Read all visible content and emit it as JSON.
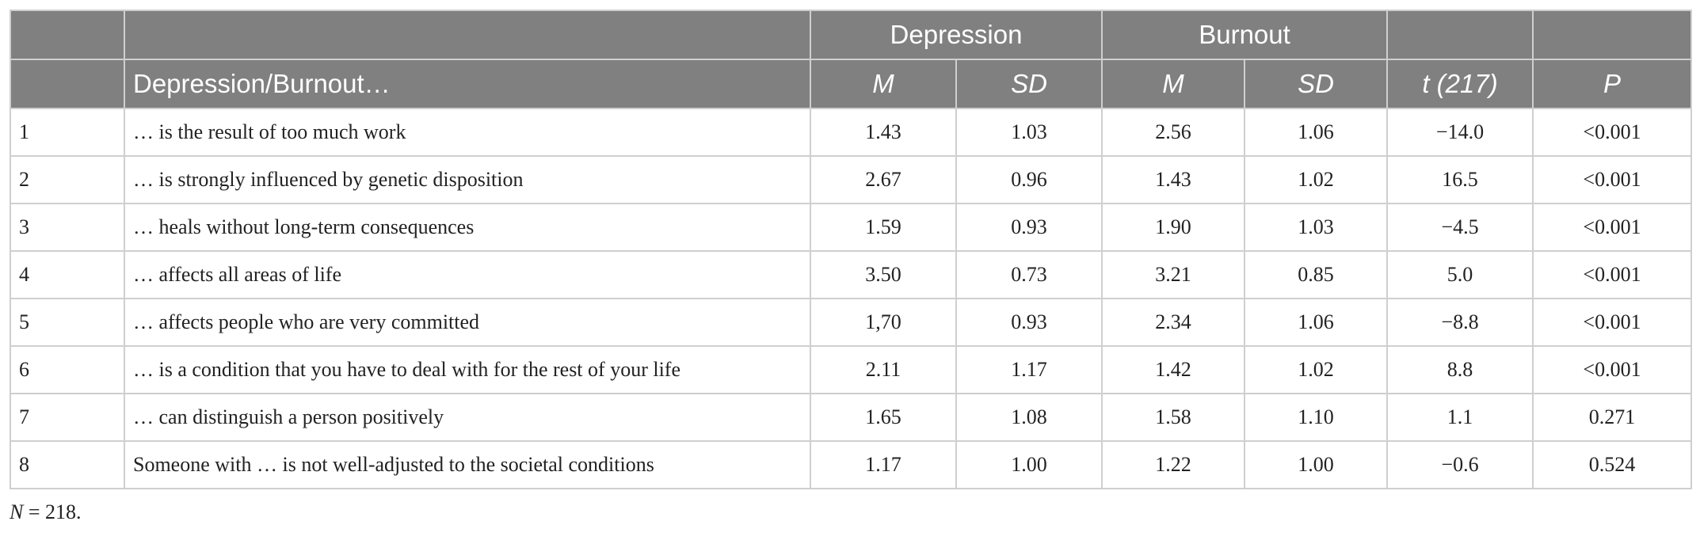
{
  "header": {
    "group_depression": "Depression",
    "group_burnout": "Burnout",
    "col_label": "Depression/Burnout…",
    "dep_m": "M",
    "dep_sd": "SD",
    "bur_m": "M",
    "bur_sd": "SD",
    "t": "t (217)",
    "p": "P"
  },
  "rows": [
    {
      "n": "1",
      "item": "… is the result of too much work",
      "dep_m": "1.43",
      "dep_sd": "1.03",
      "bur_m": "2.56",
      "bur_sd": "1.06",
      "t": "−14.0",
      "p": "<0.001"
    },
    {
      "n": "2",
      "item": "… is strongly influenced by genetic disposition",
      "dep_m": "2.67",
      "dep_sd": "0.96",
      "bur_m": "1.43",
      "bur_sd": "1.02",
      "t": "16.5",
      "p": "<0.001"
    },
    {
      "n": "3",
      "item": "… heals without long-term consequences",
      "dep_m": "1.59",
      "dep_sd": "0.93",
      "bur_m": "1.90",
      "bur_sd": "1.03",
      "t": "−4.5",
      "p": "<0.001"
    },
    {
      "n": "4",
      "item": "… affects all areas of life",
      "dep_m": "3.50",
      "dep_sd": "0.73",
      "bur_m": "3.21",
      "bur_sd": "0.85",
      "t": "5.0",
      "p": "<0.001"
    },
    {
      "n": "5",
      "item": "… affects people who are very committed",
      "dep_m": "1,70",
      "dep_sd": "0.93",
      "bur_m": "2.34",
      "bur_sd": "1.06",
      "t": "−8.8",
      "p": "<0.001"
    },
    {
      "n": "6",
      "item": "… is a condition that you have to deal with for the rest of your life",
      "dep_m": "2.11",
      "dep_sd": "1.17",
      "bur_m": "1.42",
      "bur_sd": "1.02",
      "t": "8.8",
      "p": "<0.001"
    },
    {
      "n": "7",
      "item": "… can distinguish a person positively",
      "dep_m": "1.65",
      "dep_sd": "1.08",
      "bur_m": "1.58",
      "bur_sd": "1.10",
      "t": "1.1",
      "p": "0.271"
    },
    {
      "n": "8",
      "item": "Someone with … is not well-adjusted to the societal conditions",
      "dep_m": "1.17",
      "dep_sd": "1.00",
      "bur_m": "1.22",
      "bur_sd": "1.00",
      "t": "−0.6",
      "p": "0.524"
    }
  ],
  "note": {
    "n_symbol": "N",
    "n_text": " = 218."
  }
}
